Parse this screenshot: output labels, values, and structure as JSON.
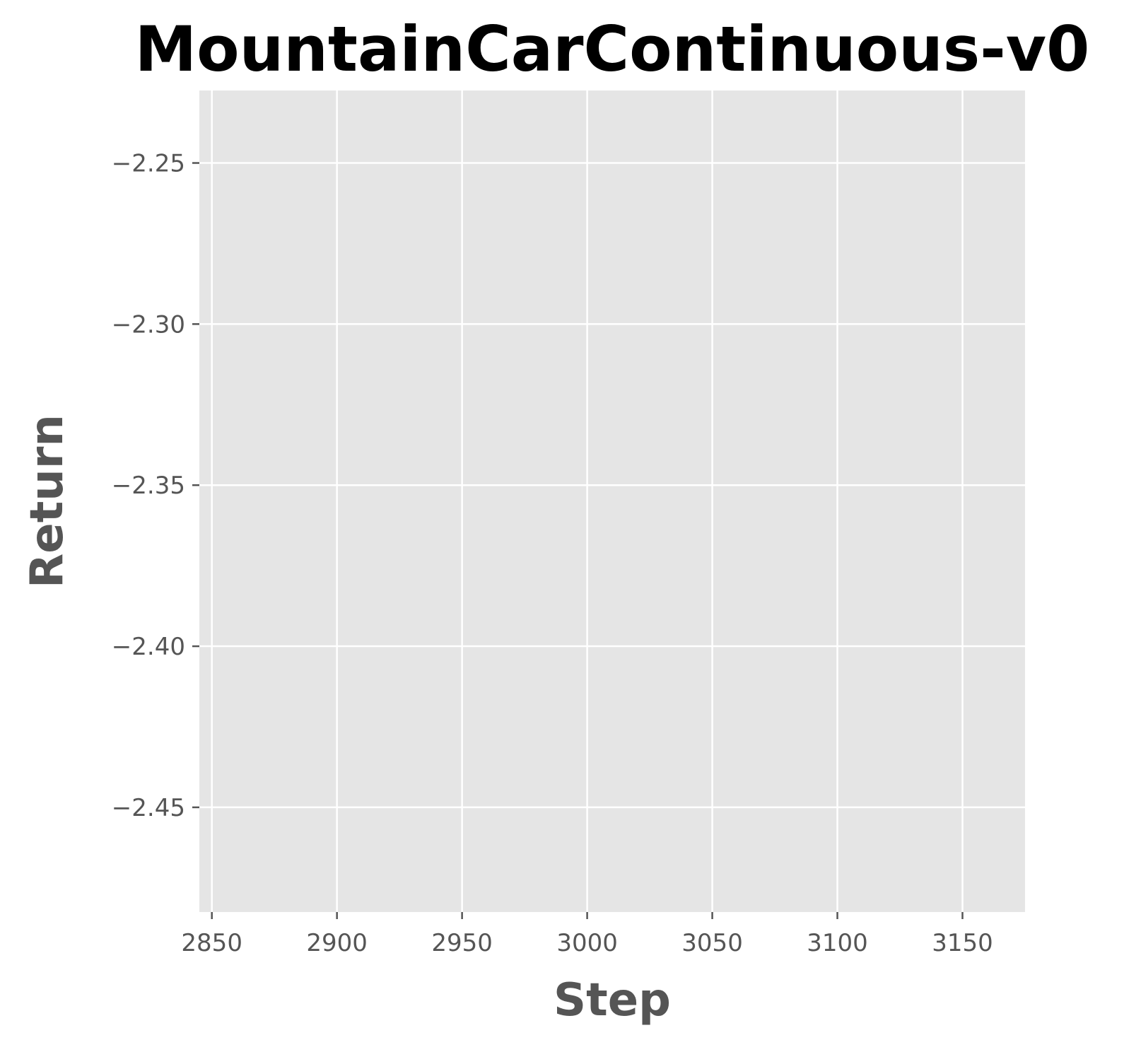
{
  "chart_data": {
    "type": "line",
    "title": "MountainCarContinuous-v0",
    "xlabel": "Step",
    "ylabel": "Return",
    "xlim": [
      2845,
      3175
    ],
    "ylim": [
      -2.4825,
      -2.2275
    ],
    "xticks": [
      2850,
      2900,
      2950,
      3000,
      3050,
      3100,
      3150
    ],
    "xtick_labels": [
      "2850",
      "2900",
      "2950",
      "3000",
      "3050",
      "3100",
      "3150"
    ],
    "yticks": [
      -2.25,
      -2.3,
      -2.35,
      -2.4,
      -2.45
    ],
    "ytick_labels": [
      "−2.25",
      "−2.30",
      "−2.35",
      "−2.40",
      "−2.45"
    ],
    "grid": true,
    "series": [],
    "colors": {
      "plot_background": "#e5e5e5",
      "grid": "#ffffff",
      "tick_text": "#555555",
      "title_text": "#000000"
    }
  }
}
